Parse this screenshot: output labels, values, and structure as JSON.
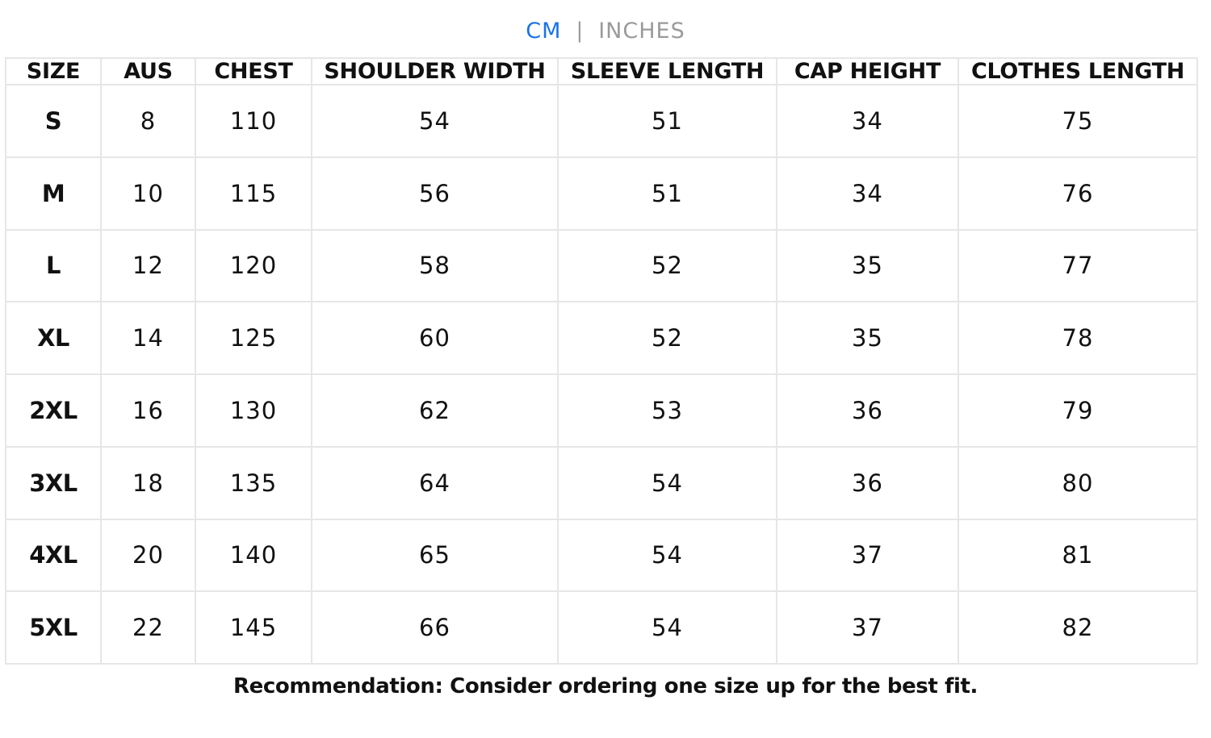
{
  "units": {
    "active": "CM",
    "separator": "|",
    "inactive": "INCHES",
    "accent_color": "#1a73e8"
  },
  "table": {
    "headers": [
      "SIZE",
      "AUS",
      "CHEST",
      "SHOULDER WIDTH",
      "SLEEVE LENGTH",
      "CAP HEIGHT",
      "CLOTHES LENGTH"
    ],
    "rows": [
      [
        "S",
        "8",
        "110",
        "54",
        "51",
        "34",
        "75"
      ],
      [
        "M",
        "10",
        "115",
        "56",
        "51",
        "34",
        "76"
      ],
      [
        "L",
        "12",
        "120",
        "58",
        "52",
        "35",
        "77"
      ],
      [
        "XL",
        "14",
        "125",
        "60",
        "52",
        "35",
        "78"
      ],
      [
        "2XL",
        "16",
        "130",
        "62",
        "53",
        "36",
        "79"
      ],
      [
        "3XL",
        "18",
        "135",
        "64",
        "54",
        "36",
        "80"
      ],
      [
        "4XL",
        "20",
        "140",
        "65",
        "54",
        "37",
        "81"
      ],
      [
        "5XL",
        "22",
        "145",
        "66",
        "54",
        "37",
        "82"
      ]
    ]
  },
  "recommendation": "Recommendation: Consider ordering one size up for the best fit."
}
